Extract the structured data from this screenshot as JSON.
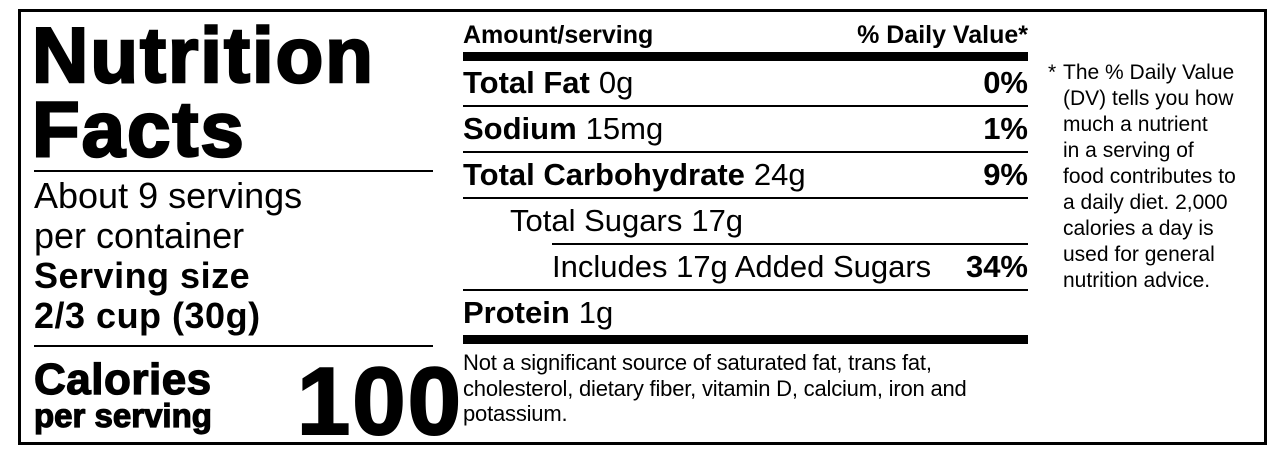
{
  "panel": {
    "title": "Nutrition\nFacts",
    "servings_per_container": "About 9 servings\nper container",
    "serving_size_label": "Serving size",
    "serving_size_value": "2/3 cup (30g)",
    "calories_label": "Calories",
    "calories_sublabel": "per serving",
    "calories_value": "100"
  },
  "nutrient_table": {
    "header": {
      "amount_col": "Amount/serving",
      "dv_col": "% Daily Value*"
    },
    "rows": [
      {
        "name": "Total Fat",
        "amount": "0g",
        "dv": "0%"
      },
      {
        "name": "Sodium",
        "amount": "15mg",
        "dv": "1%"
      },
      {
        "name": "Total Carbohydrate",
        "amount": "24g",
        "dv": "9%"
      },
      {
        "name": "Total Sugars",
        "amount": "17g",
        "dv": ""
      },
      {
        "name": "Includes 17g Added Sugars",
        "amount": "",
        "dv": "34%"
      },
      {
        "name": "Protein",
        "amount": "1g",
        "dv": ""
      }
    ],
    "footnote": "Not a significant source of saturated fat, trans fat,\ncholesterol, dietary fiber, vitamin D, calcium, iron and\npotassium."
  },
  "dv_note": {
    "asterisk": "*",
    "text": "The % Daily Value\n(DV) tells you how\nmuch a nutrient\nin a serving of\nfood contributes to\na daily diet. 2,000\ncalories a day is\nused for general\nnutrition advice."
  },
  "colors": {
    "text": "#000000",
    "background": "#ffffff"
  }
}
